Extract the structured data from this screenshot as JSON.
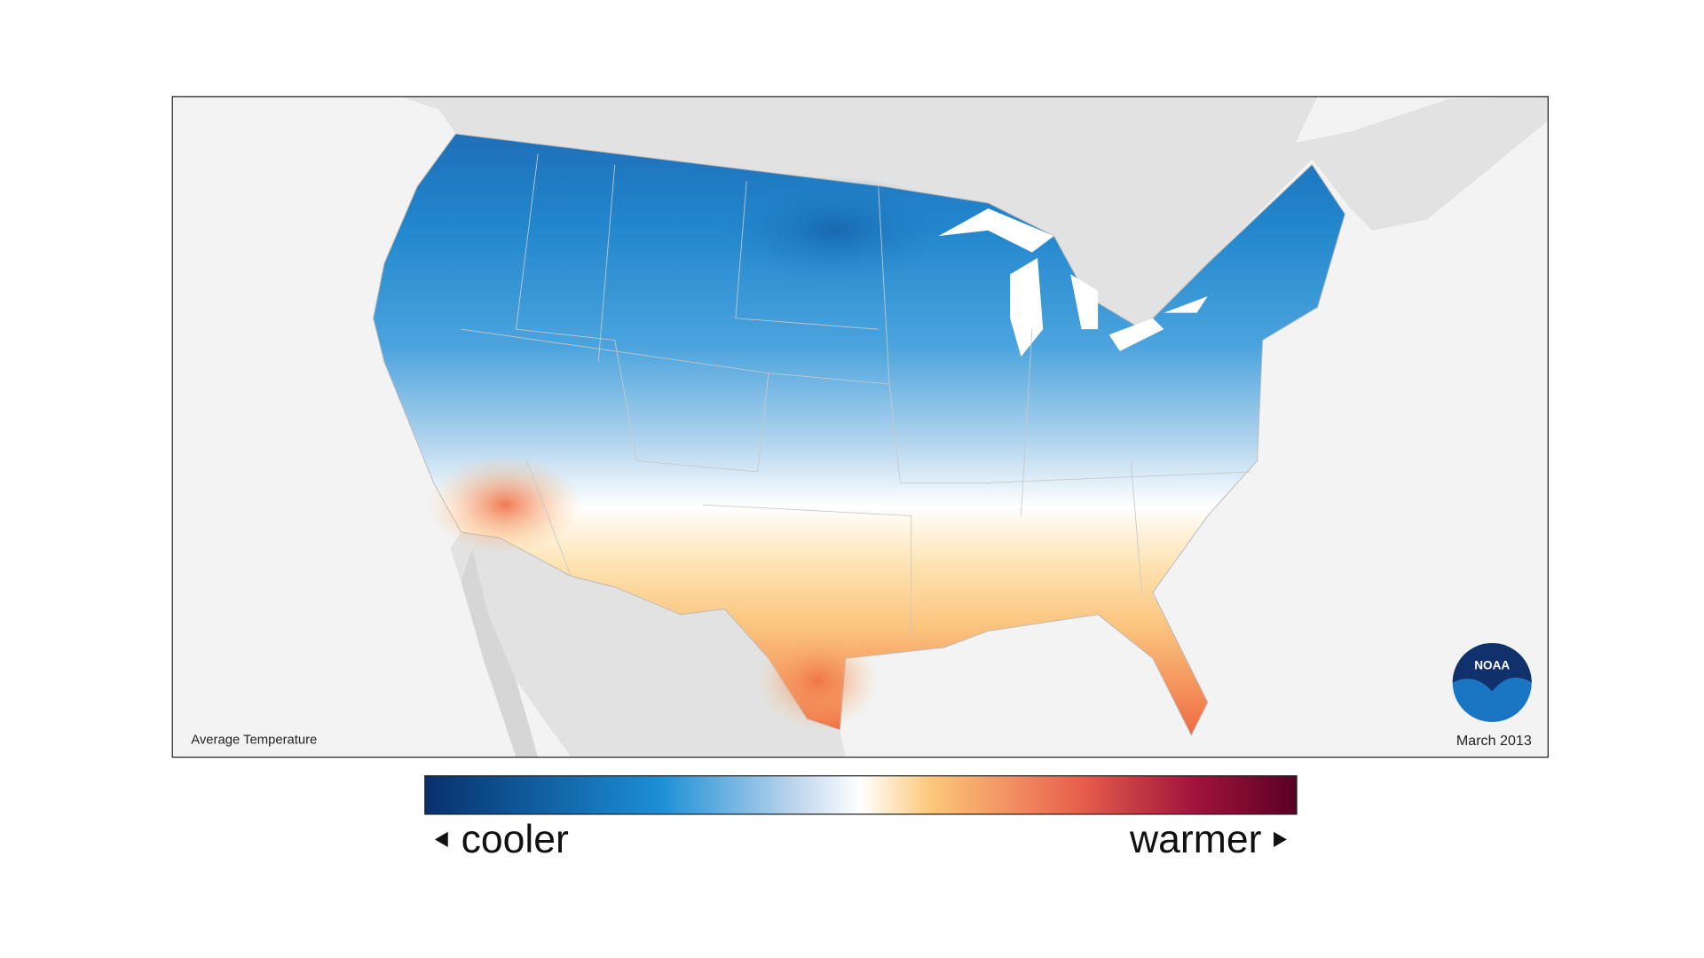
{
  "map": {
    "title": "Average Temperature",
    "date": "March 2013"
  },
  "legend": {
    "low": "cooler",
    "high": "warmer"
  },
  "logo": {
    "text": "NOAA"
  }
}
